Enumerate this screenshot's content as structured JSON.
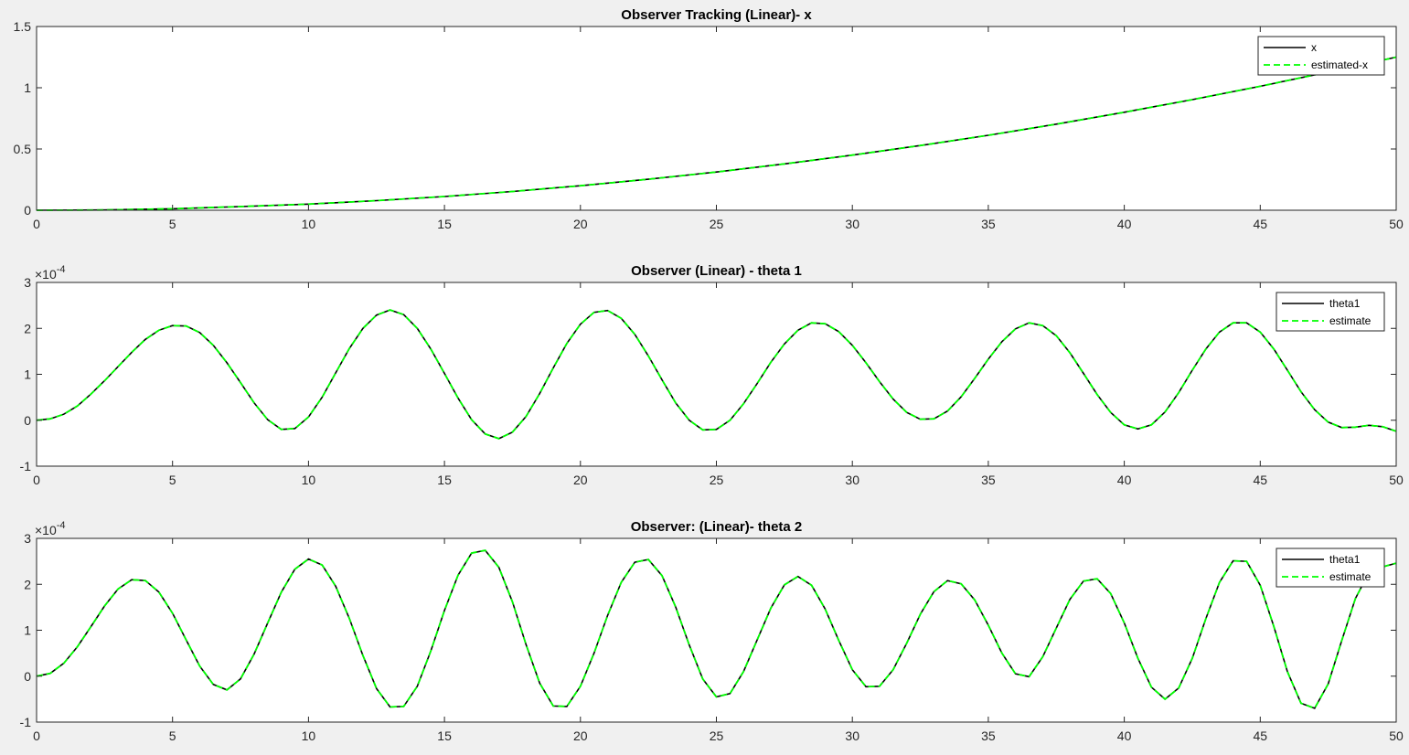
{
  "figure": {
    "background": "#f0f0f0"
  },
  "colors": {
    "truth": "#000000",
    "estimate": "#00ff00",
    "axes_bg": "#ffffff",
    "axes_edge": "#262626"
  },
  "chart_data": [
    {
      "type": "line",
      "title": "Observer Tracking (Linear)- x",
      "xlabel": "",
      "ylabel": "",
      "xlim": [
        0,
        50
      ],
      "ylim": [
        0,
        1.5
      ],
      "x_ticks": [
        0,
        5,
        10,
        15,
        20,
        25,
        30,
        35,
        40,
        45,
        50
      ],
      "x_tick_labels": [
        "0",
        "5",
        "10",
        "15",
        "20",
        "25",
        "30",
        "35",
        "40",
        "45",
        "50"
      ],
      "y_ticks": [
        0,
        0.5,
        1,
        1.5
      ],
      "y_tick_labels": [
        "0",
        "0.5",
        "1",
        "1.5"
      ],
      "exponent_label": "",
      "legend_position": "top-right",
      "grid": false,
      "x": [
        0,
        2.5,
        5,
        7.5,
        10,
        12.5,
        15,
        17.5,
        20,
        22.5,
        25,
        27.5,
        30,
        32.5,
        35,
        37.5,
        40,
        42.5,
        45,
        47.5,
        50
      ],
      "series": [
        {
          "name": "x",
          "color": "#000000",
          "style": "solid",
          "values": [
            0,
            0.002,
            0.012,
            0.03,
            0.05,
            0.078,
            0.112,
            0.153,
            0.2,
            0.253,
            0.312,
            0.378,
            0.45,
            0.528,
            0.612,
            0.703,
            0.8,
            0.903,
            1.012,
            1.128,
            1.25
          ]
        },
        {
          "name": "estimated-x",
          "color": "#00ff00",
          "style": "dashed",
          "values": [
            0,
            0.002,
            0.012,
            0.03,
            0.05,
            0.078,
            0.112,
            0.153,
            0.2,
            0.253,
            0.312,
            0.378,
            0.45,
            0.528,
            0.612,
            0.703,
            0.8,
            0.903,
            1.012,
            1.128,
            1.25
          ]
        }
      ]
    },
    {
      "type": "line",
      "title": "Observer (Linear) - theta 1",
      "xlabel": "",
      "ylabel": "",
      "xlim": [
        0,
        50
      ],
      "ylim": [
        -1,
        3
      ],
      "x_ticks": [
        0,
        5,
        10,
        15,
        20,
        25,
        30,
        35,
        40,
        45,
        50
      ],
      "x_tick_labels": [
        "0",
        "5",
        "10",
        "15",
        "20",
        "25",
        "30",
        "35",
        "40",
        "45",
        "50"
      ],
      "y_ticks": [
        -1,
        0,
        1,
        2,
        3
      ],
      "y_tick_labels": [
        "-1",
        "0",
        "1",
        "2",
        "3"
      ],
      "exponent_label": "×10",
      "exponent_power": "-4",
      "legend_position": "top-right",
      "grid": false,
      "x": [
        0,
        0.5,
        1,
        1.5,
        2,
        2.5,
        3,
        3.5,
        4,
        4.5,
        5,
        5.5,
        6,
        6.5,
        7,
        7.5,
        8,
        8.5,
        9,
        9.5,
        10,
        10.5,
        11,
        11.5,
        12,
        12.5,
        13,
        13.5,
        14,
        14.5,
        15,
        15.5,
        16,
        16.5,
        17,
        17.5,
        18,
        18.5,
        19,
        19.5,
        20,
        20.5,
        21,
        21.5,
        22,
        22.5,
        23,
        23.5,
        24,
        24.5,
        25,
        25.5,
        26,
        26.5,
        27,
        27.5,
        28,
        28.5,
        29,
        29.5,
        30,
        30.5,
        31,
        31.5,
        32,
        32.5,
        33,
        33.5,
        34,
        34.5,
        35,
        35.5,
        36,
        36.5,
        37,
        37.5,
        38,
        38.5,
        39,
        39.5,
        40,
        40.5,
        41,
        41.5,
        42,
        42.5,
        43,
        43.5,
        44,
        44.5,
        45,
        45.5,
        46,
        46.5,
        47,
        47.5,
        48,
        48.5,
        49,
        49.5,
        50
      ],
      "series": [
        {
          "name": "theta1",
          "color": "#000000",
          "style": "solid",
          "values": [
            0,
            0.03,
            0.13,
            0.31,
            0.57,
            0.86,
            1.17,
            1.48,
            1.76,
            1.96,
            2.06,
            2.05,
            1.91,
            1.63,
            1.25,
            0.82,
            0.38,
            0.01,
            -0.2,
            -0.18,
            0.07,
            0.5,
            1.03,
            1.56,
            2.0,
            2.29,
            2.4,
            2.3,
            2.0,
            1.55,
            1.02,
            0.48,
            0.01,
            -0.3,
            -0.4,
            -0.26,
            0.08,
            0.58,
            1.14,
            1.67,
            2.09,
            2.35,
            2.39,
            2.22,
            1.87,
            1.4,
            0.88,
            0.38,
            -0.0,
            -0.21,
            -0.2,
            0.0,
            0.36,
            0.8,
            1.26,
            1.66,
            1.96,
            2.12,
            2.1,
            1.93,
            1.63,
            1.25,
            0.84,
            0.46,
            0.17,
            0.02,
            0.03,
            0.2,
            0.51,
            0.91,
            1.33,
            1.71,
            1.99,
            2.12,
            2.06,
            1.84,
            1.47,
            1.02,
            0.56,
            0.17,
            -0.1,
            -0.19,
            -0.1,
            0.18,
            0.6,
            1.09,
            1.55,
            1.92,
            2.12,
            2.12,
            1.92,
            1.55,
            1.09,
            0.62,
            0.23,
            -0.04,
            -0.16,
            -0.15,
            -0.11,
            -0.14,
            -0.24
          ]
        },
        {
          "name": "estimate",
          "color": "#00ff00",
          "style": "dashed",
          "values": [
            0,
            0.03,
            0.13,
            0.31,
            0.57,
            0.86,
            1.17,
            1.48,
            1.76,
            1.96,
            2.06,
            2.05,
            1.91,
            1.63,
            1.25,
            0.82,
            0.38,
            0.01,
            -0.2,
            -0.18,
            0.07,
            0.5,
            1.03,
            1.56,
            2.0,
            2.29,
            2.4,
            2.3,
            2.0,
            1.55,
            1.02,
            0.48,
            0.01,
            -0.3,
            -0.4,
            -0.26,
            0.08,
            0.58,
            1.14,
            1.67,
            2.09,
            2.35,
            2.39,
            2.22,
            1.87,
            1.4,
            0.88,
            0.38,
            -0.0,
            -0.21,
            -0.2,
            0.0,
            0.36,
            0.8,
            1.26,
            1.66,
            1.96,
            2.12,
            2.1,
            1.93,
            1.63,
            1.25,
            0.84,
            0.46,
            0.17,
            0.02,
            0.03,
            0.2,
            0.51,
            0.91,
            1.33,
            1.71,
            1.99,
            2.12,
            2.06,
            1.84,
            1.47,
            1.02,
            0.56,
            0.17,
            -0.1,
            -0.19,
            -0.1,
            0.18,
            0.6,
            1.09,
            1.55,
            1.92,
            2.12,
            2.12,
            1.92,
            1.55,
            1.09,
            0.62,
            0.23,
            -0.04,
            -0.16,
            -0.15,
            -0.11,
            -0.14,
            -0.24
          ]
        }
      ]
    },
    {
      "type": "line",
      "title": "Observer: (Linear)- theta 2",
      "xlabel": "",
      "ylabel": "",
      "xlim": [
        0,
        50
      ],
      "ylim": [
        -1,
        3
      ],
      "x_ticks": [
        0,
        5,
        10,
        15,
        20,
        25,
        30,
        35,
        40,
        45,
        50
      ],
      "x_tick_labels": [
        "0",
        "5",
        "10",
        "15",
        "20",
        "25",
        "30",
        "35",
        "40",
        "45",
        "50"
      ],
      "y_ticks": [
        -1,
        0,
        1,
        2,
        3
      ],
      "y_tick_labels": [
        "-1",
        "0",
        "1",
        "2",
        "3"
      ],
      "exponent_label": "×10",
      "exponent_power": "-4",
      "legend_position": "top-right",
      "grid": false,
      "x": [
        0,
        0.5,
        1,
        1.5,
        2,
        2.5,
        3,
        3.5,
        4,
        4.5,
        5,
        5.5,
        6,
        6.5,
        7,
        7.5,
        8,
        8.5,
        9,
        9.5,
        10,
        10.5,
        11,
        11.5,
        12,
        12.5,
        13,
        13.5,
        14,
        14.5,
        15,
        15.5,
        16,
        16.5,
        17,
        17.5,
        18,
        18.5,
        19,
        19.5,
        20,
        20.5,
        21,
        21.5,
        22,
        22.5,
        23,
        23.5,
        24,
        24.5,
        25,
        25.5,
        26,
        26.5,
        27,
        27.5,
        28,
        28.5,
        29,
        29.5,
        30,
        30.5,
        31,
        31.5,
        32,
        32.5,
        33,
        33.5,
        34,
        34.5,
        35,
        35.5,
        36,
        36.5,
        37,
        37.5,
        38,
        38.5,
        39,
        39.5,
        40,
        40.5,
        41,
        41.5,
        42,
        42.5,
        43,
        43.5,
        44,
        44.5,
        45,
        45.5,
        46,
        46.5,
        47,
        47.5,
        48,
        48.5,
        49,
        49.5,
        50
      ],
      "series": [
        {
          "name": "theta1",
          "color": "#000000",
          "style": "solid",
          "values": [
            0,
            0.06,
            0.28,
            0.64,
            1.08,
            1.53,
            1.9,
            2.1,
            2.08,
            1.83,
            1.37,
            0.79,
            0.22,
            -0.18,
            -0.3,
            -0.06,
            0.48,
            1.16,
            1.83,
            2.33,
            2.55,
            2.42,
            1.96,
            1.26,
            0.45,
            -0.27,
            -0.67,
            -0.66,
            -0.22,
            0.55,
            1.43,
            2.2,
            2.68,
            2.74,
            2.37,
            1.62,
            0.69,
            -0.15,
            -0.65,
            -0.66,
            -0.22,
            0.5,
            1.32,
            2.04,
            2.48,
            2.54,
            2.19,
            1.51,
            0.68,
            -0.06,
            -0.45,
            -0.38,
            0.1,
            0.79,
            1.48,
            1.99,
            2.17,
            1.98,
            1.46,
            0.78,
            0.14,
            -0.23,
            -0.22,
            0.14,
            0.72,
            1.35,
            1.84,
            2.08,
            2.01,
            1.66,
            1.11,
            0.5,
            0.05,
            -0.01,
            0.42,
            1.05,
            1.67,
            2.07,
            2.12,
            1.8,
            1.16,
            0.39,
            -0.24,
            -0.5,
            -0.26,
            0.39,
            1.25,
            2.04,
            2.51,
            2.5,
            1.98,
            1.08,
            0.1,
            -0.59,
            -0.7,
            -0.17,
            0.78,
            1.69,
            2.26,
            2.38,
            2.46
          ]
        },
        {
          "name": "estimate",
          "color": "#00ff00",
          "style": "dashed",
          "values": [
            0,
            0.06,
            0.28,
            0.64,
            1.08,
            1.53,
            1.9,
            2.1,
            2.08,
            1.83,
            1.37,
            0.79,
            0.22,
            -0.18,
            -0.3,
            -0.06,
            0.48,
            1.16,
            1.83,
            2.33,
            2.55,
            2.42,
            1.96,
            1.26,
            0.45,
            -0.27,
            -0.67,
            -0.66,
            -0.22,
            0.55,
            1.43,
            2.2,
            2.68,
            2.74,
            2.37,
            1.62,
            0.69,
            -0.15,
            -0.65,
            -0.66,
            -0.22,
            0.5,
            1.32,
            2.04,
            2.48,
            2.54,
            2.19,
            1.51,
            0.68,
            -0.06,
            -0.45,
            -0.38,
            0.1,
            0.79,
            1.48,
            1.99,
            2.17,
            1.98,
            1.46,
            0.78,
            0.14,
            -0.23,
            -0.22,
            0.14,
            0.72,
            1.35,
            1.84,
            2.08,
            2.01,
            1.66,
            1.11,
            0.5,
            0.05,
            -0.01,
            0.42,
            1.05,
            1.67,
            2.07,
            2.12,
            1.8,
            1.16,
            0.39,
            -0.24,
            -0.5,
            -0.26,
            0.39,
            1.25,
            2.04,
            2.51,
            2.5,
            1.98,
            1.08,
            0.1,
            -0.59,
            -0.7,
            -0.17,
            0.78,
            1.69,
            2.26,
            2.38,
            2.46
          ]
        }
      ]
    }
  ]
}
